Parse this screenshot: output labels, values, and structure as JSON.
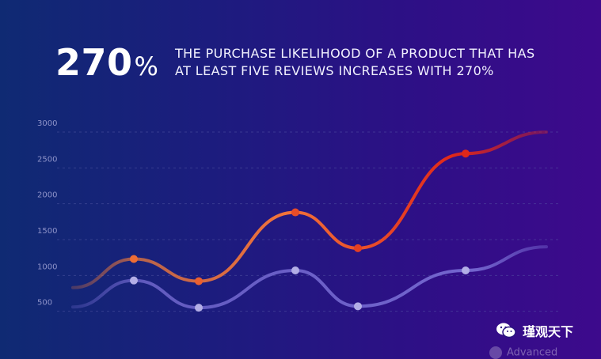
{
  "header": {
    "stat": "270",
    "stat_unit": "%",
    "line1": "THE PURCHASE LIKELIHOOD OF A PRODUCT THAT HAS",
    "line2": "AT LEAST FIVE REVIEWS INCREASES WITH 270%"
  },
  "chart_data": {
    "type": "line",
    "title": "",
    "xlabel": "",
    "ylabel": "",
    "ylim": [
      0,
      3000
    ],
    "yticks": [
      "3000",
      "2500",
      "2000",
      "1500",
      "1000",
      "500"
    ],
    "grid": true,
    "series": [
      {
        "name": "orange",
        "color_start": "#f07a3a",
        "color_end": "#e0281a",
        "values": [
          830,
          1230,
          920,
          1880,
          1380,
          2700,
          3000
        ],
        "markers": [
          false,
          true,
          true,
          true,
          true,
          true,
          false
        ]
      },
      {
        "name": "purple",
        "color": "#7a6fd6",
        "marker_color": "#b3aee6",
        "values": [
          560,
          930,
          550,
          1070,
          570,
          1070,
          1400
        ],
        "markers": [
          false,
          true,
          true,
          true,
          true,
          true,
          false
        ]
      }
    ]
  },
  "watermark": {
    "ghost_text": "Advanced",
    "label": "瑾观天下"
  }
}
